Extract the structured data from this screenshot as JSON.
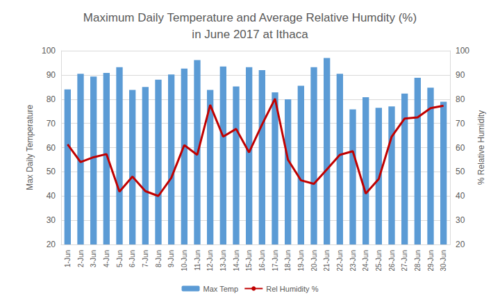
{
  "chart_data": {
    "type": "bar",
    "title": "Maximum Daily Temperature and Average Relative Humdity (%)\nin June 2017 at Ithaca",
    "categories": [
      "1-Jun",
      "2-Jun",
      "3-Jun",
      "4-Jun",
      "5-Jun",
      "6-Jun",
      "7-Jun",
      "8-Jun",
      "9-Jun",
      "10-Jun",
      "11-Jun",
      "12-Jun",
      "13-Jun",
      "14-Jun",
      "15-Jun",
      "16-Jun",
      "17-Jun",
      "18-Jun",
      "19-Jun",
      "20-Jun",
      "21-Jun",
      "22-Jun",
      "23-Jun",
      "24-Jun",
      "25-Jun",
      "26-Jun",
      "27-Jun",
      "28-Jun",
      "29-Jun",
      "30-Jun"
    ],
    "series": [
      {
        "name": "Max Temp",
        "type": "bar",
        "color": "#5b9bd5",
        "values": [
          84,
          90.5,
          89.3,
          90.8,
          93.2,
          83.8,
          85,
          88,
          90.2,
          92.6,
          96.1,
          83.8,
          93.5,
          85.2,
          93.2,
          92,
          82.8,
          79.9,
          85.5,
          93.2,
          97,
          90.5,
          75.8,
          80.8,
          76.4,
          77,
          82.3,
          88.8,
          84.7,
          78.9
        ]
      },
      {
        "name": "Rel Humidity %",
        "type": "line",
        "axis": "y2",
        "color": "#c00000",
        "values": [
          61.3,
          54,
          56,
          57.3,
          41.8,
          48,
          42,
          40,
          47.5,
          61,
          57,
          77.6,
          64.5,
          67.7,
          58,
          69.5,
          80.2,
          55,
          46.5,
          45,
          51,
          57,
          58.5,
          41,
          47,
          64.5,
          72,
          72.5,
          76.3,
          77.3
        ]
      }
    ],
    "ylabel": "Max Daily Temperature",
    "y2label": "% Relative Humidity",
    "ylim": [
      20,
      100
    ],
    "yticks": [
      20,
      30,
      40,
      50,
      60,
      70,
      80,
      90,
      100
    ],
    "y2lim": [
      20,
      100
    ],
    "y2ticks": [
      20,
      30,
      40,
      50,
      60,
      70,
      80,
      90,
      100
    ],
    "grid": true,
    "legend": "bottom"
  }
}
